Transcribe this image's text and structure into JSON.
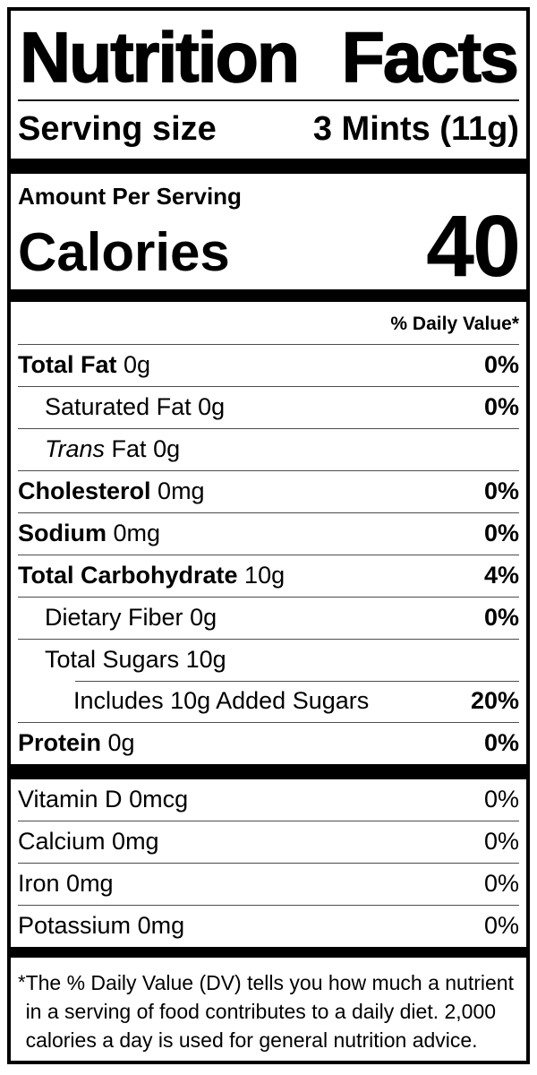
{
  "label": {
    "title": "Nutrition Facts",
    "serving_size_label": "Serving size",
    "serving_size_value": "3 Mints (11g)",
    "amount_per_serving": "Amount Per Serving",
    "calories_label": "Calories",
    "calories_value": "40",
    "daily_value_header": "% Daily Value*",
    "rows": [
      {
        "name": "Total Fat",
        "amount": "0g",
        "dv": "0%"
      },
      {
        "name": "Saturated Fat",
        "amount": "0g",
        "dv": "0%"
      },
      {
        "name_italic": "Trans",
        "name_rest": "Fat",
        "amount": "0g",
        "dv": ""
      },
      {
        "name": "Cholesterol",
        "amount": "0mg",
        "dv": "0%"
      },
      {
        "name": "Sodium",
        "amount": "0mg",
        "dv": "0%"
      },
      {
        "name": "Total Carbohydrate",
        "amount": "10g",
        "dv": "4%"
      },
      {
        "name": "Dietary Fiber",
        "amount": "0g",
        "dv": "0%"
      },
      {
        "name": "Total Sugars",
        "amount": "10g",
        "dv": ""
      },
      {
        "name": "Includes 10g Added Sugars",
        "amount": "",
        "dv": "20%"
      },
      {
        "name": "Protein",
        "amount": "0g",
        "dv": "0%"
      }
    ],
    "vitamins": [
      {
        "name": "Vitamin D",
        "amount": "0mcg",
        "dv": "0%"
      },
      {
        "name": "Calcium",
        "amount": "0mg",
        "dv": "0%"
      },
      {
        "name": "Iron",
        "amount": "0mg",
        "dv": "0%"
      },
      {
        "name": "Potassium",
        "amount": "0mg",
        "dv": "0%"
      }
    ],
    "footnote_marker": "*",
    "footnote": "The % Daily Value (DV) tells you how much a nutrient in a serving of food contributes to a daily diet. 2,000 calories a day is used for general nutrition advice.",
    "colors": {
      "text": "#000000",
      "background": "#ffffff",
      "hairline": "#4d4d4d"
    }
  }
}
